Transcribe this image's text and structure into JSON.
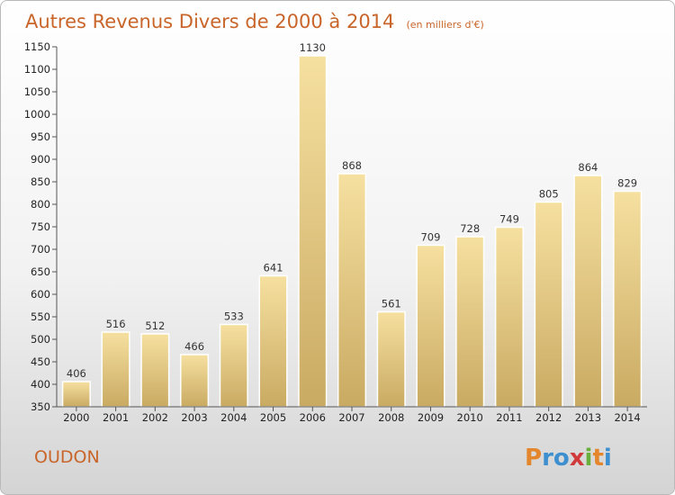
{
  "chart_data": {
    "type": "bar",
    "title": "Autres Revenus Divers de 2000 à 2014",
    "subtitle": "(en milliers d'€)",
    "xlabel": "",
    "ylabel": "",
    "categories": [
      "2000",
      "2001",
      "2002",
      "2003",
      "2004",
      "2005",
      "2006",
      "2007",
      "2008",
      "2009",
      "2010",
      "2011",
      "2012",
      "2013",
      "2014"
    ],
    "values": [
      406,
      516,
      512,
      466,
      533,
      641,
      1130,
      868,
      561,
      709,
      728,
      749,
      805,
      864,
      829
    ],
    "ylim": [
      350,
      1150
    ],
    "yticks": [
      350,
      400,
      450,
      500,
      550,
      600,
      650,
      700,
      750,
      800,
      850,
      900,
      950,
      1000,
      1050,
      1100,
      1150
    ],
    "grid": false,
    "legend": "none",
    "bar_color_top": "#f6e0a0",
    "bar_color_bottom": "#c9aa62"
  },
  "commune": "OUDON",
  "brand": {
    "letters": [
      "P",
      "r",
      "o",
      "x",
      "i",
      "t",
      "i"
    ],
    "colors": [
      "#e4862b",
      "#3d8fcf",
      "#3d8fcf",
      "#d13a3a",
      "#6aaf3c",
      "#e4862b",
      "#3d8fcf"
    ]
  }
}
